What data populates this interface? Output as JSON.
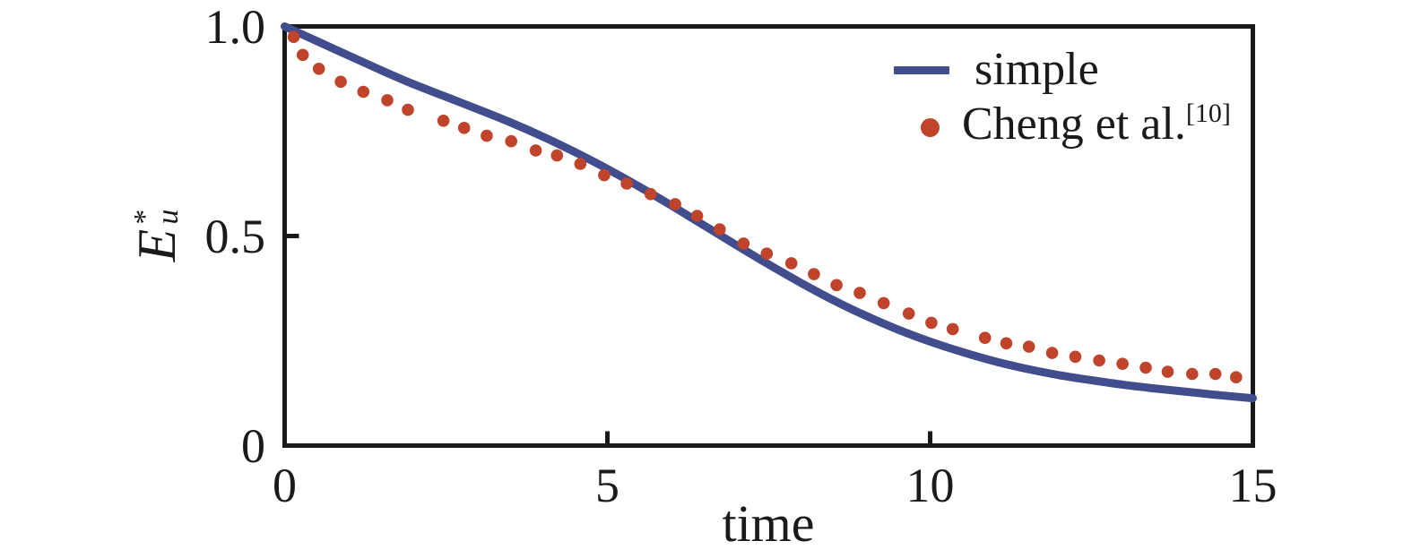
{
  "colors": {
    "background": "#ffffff",
    "frame": "#1a1a1a",
    "text": "#1a1a1a",
    "line_series": "#414d8d",
    "scatter_series": "#c0442b"
  },
  "legend": {
    "items": [
      {
        "label": "simple"
      },
      {
        "label": "Cheng et al.",
        "superscript": "[10]"
      }
    ]
  },
  "chart_data": {
    "type": "line",
    "title": "",
    "xlabel": "time",
    "ylabel": "E_u^*",
    "ylabel_parts": {
      "base": "E",
      "sup": "*",
      "sub": "u"
    },
    "xlim": [
      0,
      15
    ],
    "ylim": [
      0,
      1.0
    ],
    "grid": false,
    "legend_position": "upper right",
    "xticks": [
      {
        "value": 0,
        "label": "0"
      },
      {
        "value": 5,
        "label": "5"
      },
      {
        "value": 10,
        "label": "10"
      },
      {
        "value": 15,
        "label": "15"
      }
    ],
    "yticks": [
      {
        "value": 0,
        "label": "0"
      },
      {
        "value": 0.5,
        "label": "0.5"
      },
      {
        "value": 1.0,
        "label": "1.0"
      }
    ],
    "series": [
      {
        "name": "simple",
        "type": "line",
        "color": "#414d8d",
        "line_width": 9,
        "points": [
          [
            0.0,
            1.0
          ],
          [
            0.5,
            0.965
          ],
          [
            1.0,
            0.93
          ],
          [
            1.5,
            0.895
          ],
          [
            2.0,
            0.862
          ],
          [
            2.5,
            0.832
          ],
          [
            3.0,
            0.802
          ],
          [
            3.5,
            0.771
          ],
          [
            4.0,
            0.737
          ],
          [
            4.5,
            0.7
          ],
          [
            5.0,
            0.66
          ],
          [
            5.5,
            0.617
          ],
          [
            6.0,
            0.572
          ],
          [
            6.5,
            0.525
          ],
          [
            7.0,
            0.478
          ],
          [
            7.5,
            0.432
          ],
          [
            8.0,
            0.388
          ],
          [
            8.5,
            0.347
          ],
          [
            9.0,
            0.31
          ],
          [
            9.5,
            0.277
          ],
          [
            10.0,
            0.248
          ],
          [
            10.5,
            0.223
          ],
          [
            11.0,
            0.201
          ],
          [
            11.5,
            0.183
          ],
          [
            12.0,
            0.168
          ],
          [
            12.5,
            0.156
          ],
          [
            13.0,
            0.145
          ],
          [
            13.5,
            0.136
          ],
          [
            14.0,
            0.128
          ],
          [
            14.5,
            0.12
          ],
          [
            15.0,
            0.113
          ]
        ]
      },
      {
        "name": "Cheng et al.",
        "citation": "[10]",
        "type": "scatter",
        "color": "#c0442b",
        "marker": "circle",
        "marker_radius": 6.8,
        "points": [
          [
            0.14,
            0.975
          ],
          [
            0.28,
            0.932
          ],
          [
            0.53,
            0.899
          ],
          [
            0.87,
            0.868
          ],
          [
            1.22,
            0.844
          ],
          [
            1.59,
            0.824
          ],
          [
            1.91,
            0.801
          ],
          [
            2.46,
            0.775
          ],
          [
            2.78,
            0.758
          ],
          [
            3.13,
            0.739
          ],
          [
            3.51,
            0.726
          ],
          [
            3.89,
            0.704
          ],
          [
            4.22,
            0.692
          ],
          [
            4.58,
            0.672
          ],
          [
            4.95,
            0.645
          ],
          [
            5.3,
            0.625
          ],
          [
            5.67,
            0.6
          ],
          [
            6.05,
            0.576
          ],
          [
            6.39,
            0.548
          ],
          [
            6.74,
            0.516
          ],
          [
            7.11,
            0.482
          ],
          [
            7.47,
            0.458
          ],
          [
            7.85,
            0.435
          ],
          [
            8.2,
            0.409
          ],
          [
            8.55,
            0.383
          ],
          [
            8.91,
            0.364
          ],
          [
            9.28,
            0.34
          ],
          [
            9.67,
            0.315
          ],
          [
            10.02,
            0.293
          ],
          [
            10.35,
            0.278
          ],
          [
            10.85,
            0.257
          ],
          [
            11.18,
            0.244
          ],
          [
            11.53,
            0.236
          ],
          [
            11.89,
            0.221
          ],
          [
            12.25,
            0.212
          ],
          [
            12.62,
            0.203
          ],
          [
            12.98,
            0.195
          ],
          [
            13.34,
            0.186
          ],
          [
            13.68,
            0.176
          ],
          [
            14.06,
            0.171
          ],
          [
            14.42,
            0.171
          ],
          [
            14.74,
            0.163
          ]
        ]
      }
    ]
  }
}
